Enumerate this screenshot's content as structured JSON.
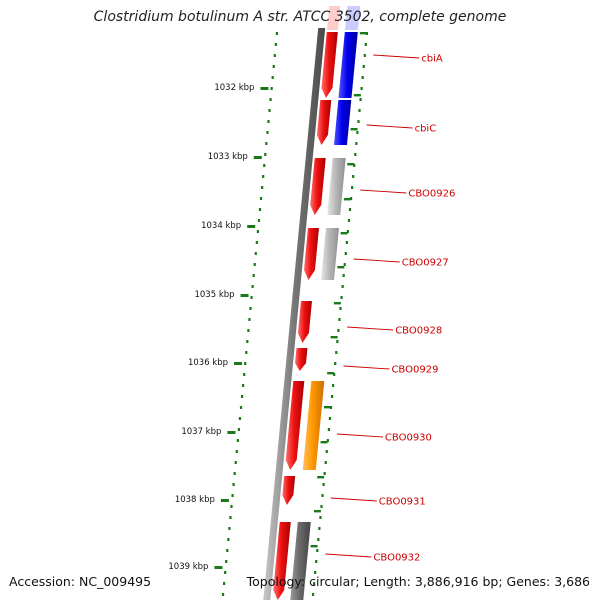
{
  "title": "Clostridium botulinum A str. ATCC 3502, complete genome",
  "footer": {
    "accession": "Accession: NC_009495",
    "summary": "Topology: circular; Length: 3,886,916 bp; Genes: 3,686"
  },
  "colors": {
    "cds": "#ee1111",
    "gene_blue": "#0000ee",
    "gene_gray": "#b8b8b8",
    "gene_darkgray": "#6a6a6a",
    "gene_orange": "#ff9900",
    "tick_green": "#1a7a1a",
    "label_red": "#cc0000"
  },
  "scale_ticks": [
    {
      "label": "1032 kbp"
    },
    {
      "label": "1033 kbp"
    },
    {
      "label": "1034 kbp"
    },
    {
      "label": "1035 kbp"
    },
    {
      "label": "1036 kbp"
    },
    {
      "label": "1037 kbp"
    },
    {
      "label": "1038 kbp"
    },
    {
      "label": "1039 kbp"
    }
  ],
  "genes": [
    {
      "label": "cbiA",
      "track2": "gene_blue"
    },
    {
      "label": "cbiC",
      "track2": "gene_blue"
    },
    {
      "label": "CBO0926",
      "track2": "gene_gray"
    },
    {
      "label": "CBO0927",
      "track2": "gene_gray"
    },
    {
      "label": "CBO0928",
      "track2": ""
    },
    {
      "label": "CBO0929",
      "track2": ""
    },
    {
      "label": "CBO0930",
      "track2": "gene_orange"
    },
    {
      "label": "CBO0931",
      "track2": ""
    },
    {
      "label": "CBO0932",
      "track2": "gene_darkgray"
    }
  ]
}
